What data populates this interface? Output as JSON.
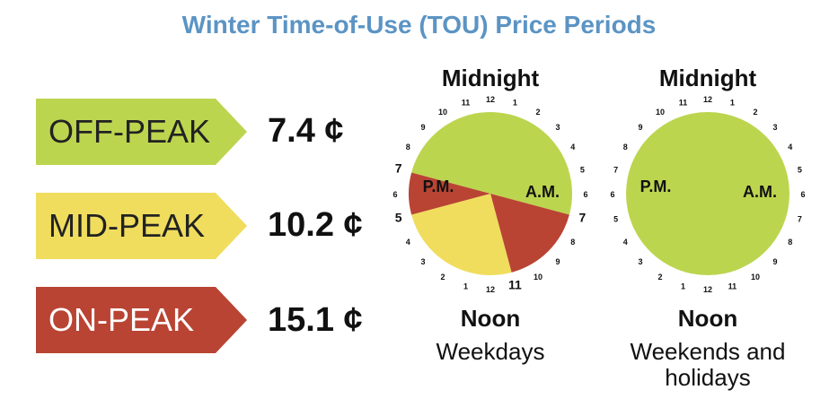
{
  "title": "Winter Time-of-Use (TOU) Price Periods",
  "colors": {
    "off_peak": "#bcd54f",
    "mid_peak": "#f0dd5d",
    "on_peak": "#b94433",
    "title": "#5b94c4"
  },
  "legend": [
    {
      "label": "OFF-PEAK",
      "price": "7.4 ¢",
      "color": "#bcd54f"
    },
    {
      "label": "MID-PEAK",
      "price": "10.2 ¢",
      "color": "#f0dd5d"
    },
    {
      "label": "ON-PEAK",
      "price": "15.1 ¢",
      "color": "#b94433"
    }
  ],
  "chart_data": [
    {
      "type": "pie",
      "title": "Weekdays",
      "top_label": "Midnight",
      "bottom_label": "Noon",
      "am_label": "A.M.",
      "pm_label": "P.M.",
      "slices": [
        {
          "period": "OFF-PEAK",
          "start_hour": 19,
          "end_hour": 7,
          "hours": 12,
          "color": "#bcd54f"
        },
        {
          "period": "ON-PEAK",
          "start_hour": 7,
          "end_hour": 11,
          "hours": 4,
          "color": "#b94433"
        },
        {
          "period": "MID-PEAK",
          "start_hour": 11,
          "end_hour": 17,
          "hours": 6,
          "color": "#f0dd5d"
        },
        {
          "period": "ON-PEAK",
          "start_hour": 17,
          "end_hour": 19,
          "hours": 2,
          "color": "#b94433"
        }
      ],
      "bold_hours": [
        7,
        11,
        5,
        7
      ]
    },
    {
      "type": "pie",
      "title": "Weekends and holidays",
      "top_label": "Midnight",
      "bottom_label": "Noon",
      "am_label": "A.M.",
      "pm_label": "P.M.",
      "slices": [
        {
          "period": "OFF-PEAK",
          "start_hour": 0,
          "end_hour": 24,
          "hours": 24,
          "color": "#bcd54f"
        }
      ],
      "bold_hours": []
    }
  ],
  "clock_numbers_am": [
    "12",
    "1",
    "2",
    "3",
    "4",
    "5",
    "6",
    "7",
    "8",
    "9",
    "10",
    "11"
  ],
  "clock_numbers_pm": [
    "12",
    "1",
    "2",
    "3",
    "4",
    "5",
    "6",
    "7",
    "8",
    "9",
    "10",
    "11"
  ]
}
